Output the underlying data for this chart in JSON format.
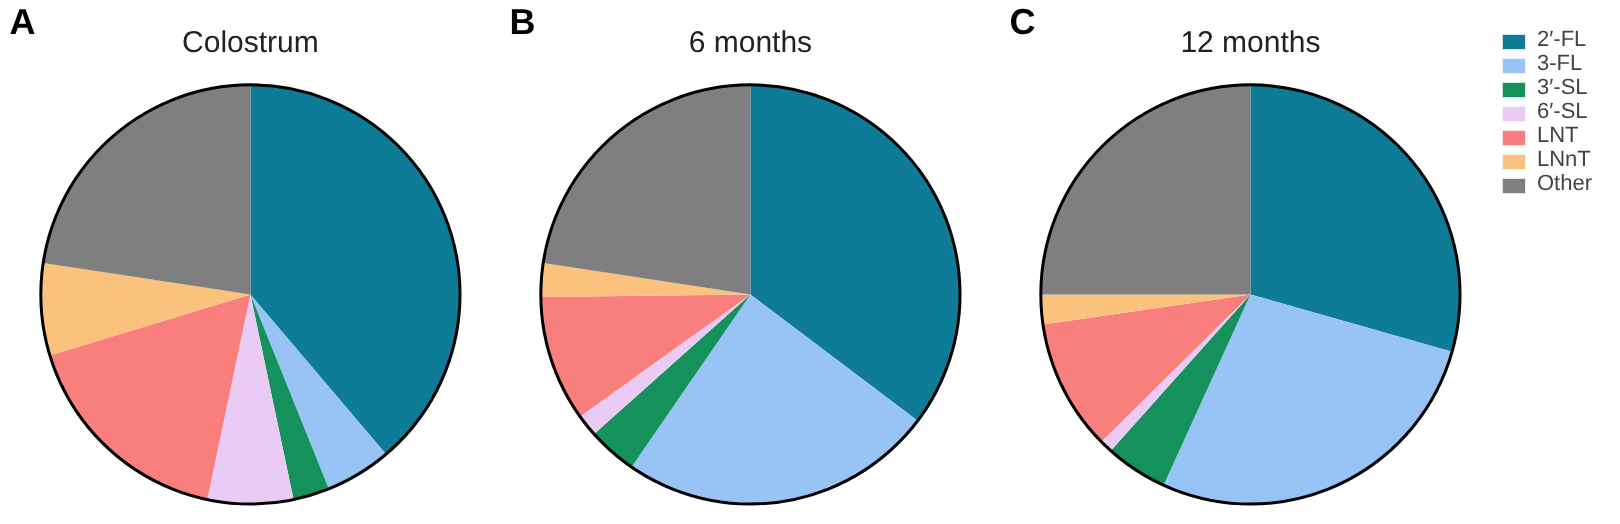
{
  "chart_data": [
    {
      "type": "pie",
      "title": "Colostrum",
      "annotations": [
        "A"
      ],
      "categories": [
        null,
        null,
        null,
        null,
        null,
        null,
        null
      ],
      "values": [
        38.8,
        5.1,
        2.8,
        6.6,
        17.0,
        7.1,
        22.6
      ],
      "colors": [
        "#0e7c96",
        "#97c3f5",
        "#15925c",
        "#eacbf5",
        "#f97e7e",
        "#fbc27e",
        "#7f7f7f"
      ]
    },
    {
      "type": "pie",
      "title": "6 months",
      "annotations": [
        "B"
      ],
      "categories": [
        null,
        null,
        null,
        null,
        null,
        null,
        null
      ],
      "values": [
        35.3,
        24.3,
        3.8,
        1.7,
        9.7,
        2.6,
        22.6
      ],
      "colors": [
        "#0e7c96",
        "#97c3f5",
        "#15925c",
        "#eacbf5",
        "#f97e7e",
        "#fbc27e",
        "#7f7f7f"
      ]
    },
    {
      "type": "pie",
      "title": "12 months",
      "annotations": [
        "C"
      ],
      "categories": [
        "2′-FL",
        "3-FL",
        "3′-SL",
        "6′-SL",
        "LNT",
        "LNnT",
        "Other"
      ],
      "values": [
        29.4,
        27.4,
        4.8,
        1.0,
        10.1,
        2.3,
        25.0
      ],
      "colors": [
        "#0e7c96",
        "#97c3f5",
        "#15925c",
        "#eacbf5",
        "#f97e7e",
        "#fbc27e",
        "#7f7f7f"
      ],
      "legend": "top right"
    }
  ]
}
